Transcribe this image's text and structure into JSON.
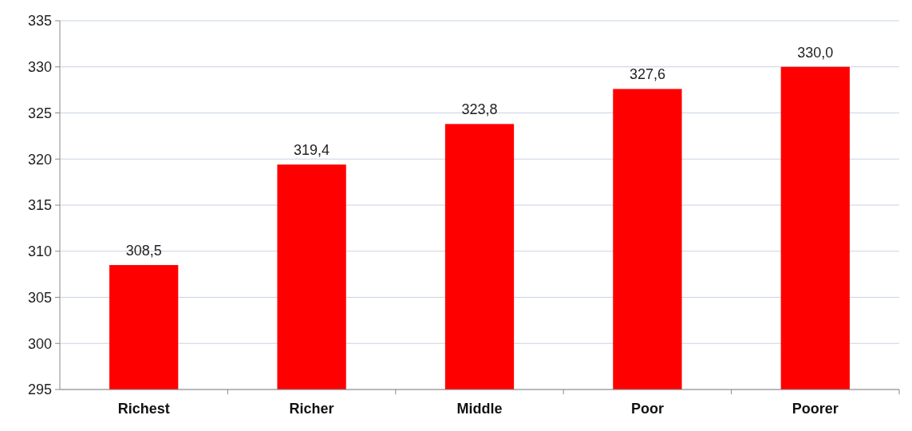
{
  "chart_data": {
    "type": "bar",
    "categories": [
      "Richest",
      "Richer",
      "Middle",
      "Poor",
      "Poorer"
    ],
    "values": [
      308.5,
      319.4,
      323.8,
      327.6,
      330.0
    ],
    "value_labels": [
      "308,5",
      "319,4",
      "323,8",
      "327,6",
      "330,0"
    ],
    "color": "#ff0000",
    "ylim": [
      295,
      335
    ],
    "yticks": [
      295,
      300,
      305,
      310,
      315,
      320,
      325,
      330,
      335
    ],
    "grid": "y"
  }
}
